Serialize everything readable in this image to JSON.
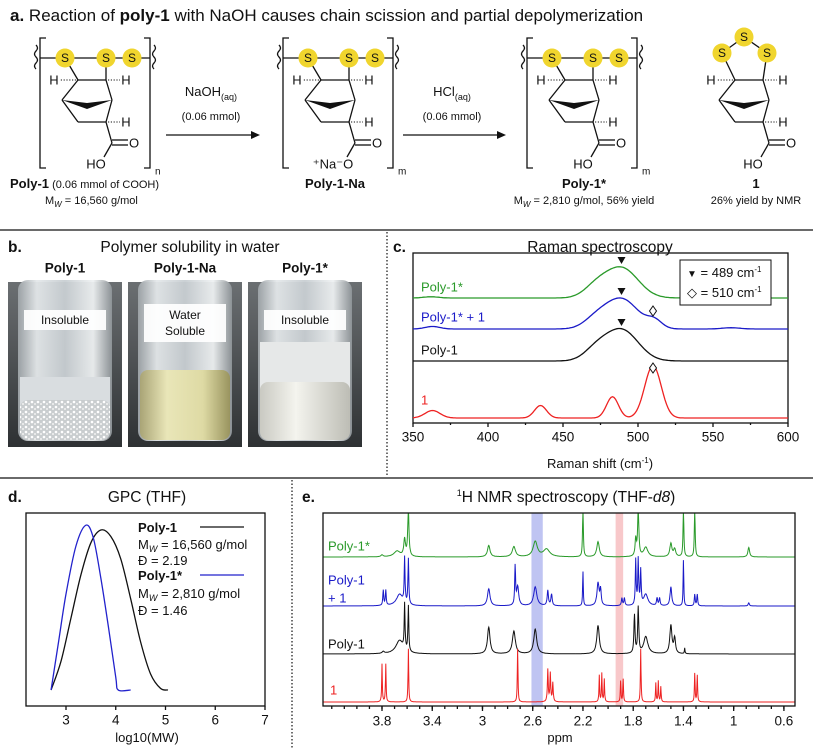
{
  "panel_a": {
    "letter": "a.",
    "title_pre": "Reaction of ",
    "title_bold": "poly-1",
    "title_post": " with NaOH causes chain scission and partial depolymerization",
    "atom_S": "S",
    "atom_H": "H",
    "atom_O": "O",
    "hydroxyl": "HO",
    "salt": "⁺Na⁻O",
    "sub_n": "n",
    "sub_m": "m",
    "step1": {
      "reagent": "NaOH",
      "reagent_sub": "(aq)",
      "amount": "(0.06 mmol)"
    },
    "step2": {
      "reagent": "HCl",
      "reagent_sub": "(aq)",
      "amount": "(0.06 mmol)"
    },
    "compounds": [
      {
        "name": "Poly-1",
        "note": " (0.06 mmol of COOH)",
        "mw_pre": "M",
        "mw_sub": "W",
        "mw_post": " = 16,560 g/mol"
      },
      {
        "name": "Poly-1-Na"
      },
      {
        "name": "Poly-1*",
        "mw_pre": "M",
        "mw_sub": "W",
        "mw_post": " = 2,810 g/mol, 56% yield"
      },
      {
        "name": "1",
        "note2": "26% yield by NMR"
      }
    ],
    "colors": {
      "sulfur": "#f0d52e"
    }
  },
  "panel_b": {
    "letter": "b.",
    "title": "Polymer solubility in water",
    "vials": [
      {
        "label": "Poly-1",
        "status": "Insoluble"
      },
      {
        "label": "Poly-1-Na",
        "status": "Water",
        "status2": "Soluble"
      },
      {
        "label": "Poly-1*",
        "status": "Insoluble"
      }
    ]
  },
  "panel_c": {
    "letter": "c.",
    "legend": [
      {
        "symbol": "▼",
        "text": " = 489 cm",
        "sup": "-1"
      },
      {
        "symbol": "◇",
        "text": " = 510 cm",
        "sup": "-1"
      }
    ],
    "xlabel_pre": "Raman shift (cm",
    "xlabel_sup": "-1",
    "xlabel_post": ")"
  },
  "panel_d": {
    "letter": "d.",
    "legend": [
      {
        "name": "Poly-1",
        "mw_pre": "M",
        "mw_sub": "W",
        "mw_post": " = 16,560 g/mol",
        "dispersity": "Đ = 2.19"
      },
      {
        "name": "Poly-1*",
        "mw_pre": "M",
        "mw_sub": "W",
        "mw_post": " = 2,810 g/mol",
        "dispersity": "Đ = 1.46"
      }
    ]
  },
  "panel_e": {
    "letter": "e.",
    "title_sup": "1",
    "title_pre": "H NMR spectroscopy (THF-",
    "title_ital": "d8",
    "title_post": ")",
    "label_plus": "+ 1",
    "highlight_colors": {
      "blue": "#aab0ee",
      "red": "#f5b5b8"
    }
  },
  "chart_data": [
    {
      "type": "line",
      "title": "Raman spectroscopy",
      "xlabel": "Raman shift (cm-1)",
      "xlim": [
        350,
        600
      ],
      "xticks": [
        350,
        400,
        450,
        500,
        550,
        600
      ],
      "markers": {
        "filled_triangle": 489,
        "open_diamond": 510
      },
      "series": [
        {
          "name": "Poly-1*",
          "color": "#2a9a2a",
          "peaks": [
            [
              489,
              24,
              11
            ],
            [
              472,
              8,
              8
            ],
            [
              362,
              1,
              5
            ]
          ]
        },
        {
          "name": "Poly-1* + 1",
          "color": "#1a1ac8",
          "peaks": [
            [
              489,
              24,
              11
            ],
            [
              472,
              7,
              8
            ],
            [
              511,
              6,
              5
            ],
            [
              363,
              2,
              5
            ],
            [
              562,
              1,
              6
            ]
          ]
        },
        {
          "name": "Poly-1",
          "color": "#111111",
          "peaks": [
            [
              489,
              25,
              11
            ],
            [
              472,
              8,
              8
            ]
          ]
        },
        {
          "name": "1",
          "color": "#ee2222",
          "peaks": [
            [
              363,
              6,
              5
            ],
            [
              435,
              10,
              4
            ],
            [
              483,
              17,
              4
            ],
            [
              510,
              42,
              5.5
            ]
          ]
        }
      ]
    },
    {
      "type": "line",
      "title": "GPC (THF)",
      "xlabel": "log10(MW)",
      "xlim": [
        2.2,
        7
      ],
      "xticks": [
        3,
        4,
        5,
        6,
        7
      ],
      "series": [
        {
          "name": "Poly-1",
          "color": "#111111",
          "points": [
            [
              2.7,
              0
            ],
            [
              2.9,
              0.18
            ],
            [
              3.1,
              0.45
            ],
            [
              3.3,
              0.72
            ],
            [
              3.5,
              0.92
            ],
            [
              3.7,
              1.0
            ],
            [
              3.9,
              0.96
            ],
            [
              4.1,
              0.82
            ],
            [
              4.3,
              0.57
            ],
            [
              4.5,
              0.3
            ],
            [
              4.7,
              0.1
            ],
            [
              4.9,
              0.01
            ],
            [
              5.05,
              0
            ]
          ]
        },
        {
          "name": "Poly-1*",
          "color": "#2222cc",
          "points": [
            [
              2.7,
              0
            ],
            [
              2.85,
              0.3
            ],
            [
              3.0,
              0.6
            ],
            [
              3.2,
              0.9
            ],
            [
              3.4,
              1.03
            ],
            [
              3.55,
              0.95
            ],
            [
              3.7,
              0.7
            ],
            [
              3.85,
              0.4
            ],
            [
              4.0,
              0.08
            ],
            [
              4.05,
              0
            ],
            [
              4.3,
              0
            ]
          ]
        }
      ]
    },
    {
      "type": "line",
      "title": "1H NMR spectroscopy (THF-d8)",
      "xlabel": "ppm",
      "xlim": [
        4.27,
        0.51
      ],
      "xticks": [
        3.8,
        3.4,
        3.0,
        2.6,
        2.2,
        1.8,
        1.4,
        1.0,
        0.6
      ],
      "highlights": [
        {
          "from": 2.61,
          "to": 2.52,
          "color": "blue"
        },
        {
          "from": 1.94,
          "to": 1.88,
          "color": "red"
        }
      ],
      "series": [
        {
          "name": "Poly-1*",
          "color": "#2a9a2a",
          "peaks": [
            [
              3.59,
              1.2,
              0.006
            ],
            [
              3.62,
              0.45,
              0.008
            ],
            [
              3.68,
              0.15,
              0.03
            ],
            [
              3.8,
              0.05,
              0.01
            ],
            [
              2.95,
              0.3,
              0.012
            ],
            [
              2.75,
              0.27,
              0.015
            ],
            [
              2.58,
              0.4,
              0.02
            ],
            [
              2.49,
              0.2,
              0.03
            ],
            [
              2.2,
              1.2,
              0.004
            ],
            [
              2.08,
              0.4,
              0.012
            ],
            [
              1.76,
              1.2,
              0.006
            ],
            [
              1.78,
              0.45,
              0.006
            ],
            [
              1.7,
              0.25,
              0.02
            ],
            [
              1.5,
              0.35,
              0.01
            ],
            [
              1.47,
              0.2,
              0.01
            ],
            [
              1.4,
              1.2,
              0.004
            ],
            [
              1.31,
              1.2,
              0.004
            ],
            [
              0.88,
              0.25,
              0.008
            ]
          ]
        },
        {
          "name": "Poly-1* + 1",
          "color": "#1a1ac8",
          "peaks": [
            [
              3.62,
              1.2,
              0.004
            ],
            [
              3.59,
              1.2,
              0.004
            ],
            [
              3.66,
              0.3,
              0.03
            ],
            [
              3.79,
              0.4,
              0.004
            ],
            [
              3.77,
              0.4,
              0.004
            ],
            [
              2.95,
              0.45,
              0.012
            ],
            [
              2.74,
              1.0,
              0.004
            ],
            [
              2.72,
              0.5,
              0.01
            ],
            [
              2.58,
              0.5,
              0.015
            ],
            [
              2.48,
              0.4,
              0.006
            ],
            [
              2.45,
              0.3,
              0.006
            ],
            [
              2.2,
              0.9,
              0.003
            ],
            [
              2.08,
              0.6,
              0.01
            ],
            [
              2.06,
              0.4,
              0.006
            ],
            [
              1.89,
              0.2,
              0.005
            ],
            [
              1.87,
              0.2,
              0.005
            ],
            [
              1.78,
              1.2,
              0.004
            ],
            [
              1.76,
              1.2,
              0.004
            ],
            [
              1.74,
              0.9,
              0.004
            ],
            [
              1.7,
              0.3,
              0.02
            ],
            [
              1.61,
              0.2,
              0.005
            ],
            [
              1.59,
              0.2,
              0.005
            ],
            [
              1.5,
              0.5,
              0.008
            ],
            [
              1.4,
              1.2,
              0.003
            ],
            [
              1.31,
              0.3,
              0.004
            ],
            [
              1.29,
              0.3,
              0.004
            ],
            [
              0.88,
              0.08,
              0.006
            ]
          ]
        },
        {
          "name": "Poly-1",
          "color": "#111111",
          "peaks": [
            [
              3.62,
              1.2,
              0.004
            ],
            [
              3.59,
              1.2,
              0.004
            ],
            [
              3.66,
              0.35,
              0.035
            ],
            [
              3.79,
              0.05,
              0.01
            ],
            [
              2.95,
              0.7,
              0.012
            ],
            [
              2.75,
              0.6,
              0.014
            ],
            [
              2.58,
              0.65,
              0.014
            ],
            [
              2.08,
              0.75,
              0.012
            ],
            [
              1.79,
              1.0,
              0.005
            ],
            [
              1.76,
              1.2,
              0.005
            ],
            [
              1.7,
              0.45,
              0.02
            ],
            [
              1.5,
              0.75,
              0.01
            ],
            [
              1.47,
              0.4,
              0.008
            ],
            [
              1.39,
              0.15,
              0.003
            ]
          ]
        },
        {
          "name": "1",
          "color": "#ee2222",
          "peaks": [
            [
              3.8,
              1.0,
              0.003
            ],
            [
              3.77,
              1.0,
              0.003
            ],
            [
              3.59,
              1.4,
              0.003
            ],
            [
              2.72,
              1.4,
              0.003
            ],
            [
              2.48,
              0.85,
              0.004
            ],
            [
              2.46,
              0.75,
              0.004
            ],
            [
              2.44,
              0.5,
              0.004
            ],
            [
              2.07,
              0.7,
              0.003
            ],
            [
              2.05,
              0.75,
              0.003
            ],
            [
              2.03,
              0.6,
              0.003
            ],
            [
              1.9,
              0.55,
              0.003
            ],
            [
              1.88,
              0.6,
              0.003
            ],
            [
              1.74,
              1.4,
              0.003
            ],
            [
              1.62,
              0.5,
              0.003
            ],
            [
              1.6,
              0.55,
              0.003
            ],
            [
              1.58,
              0.4,
              0.003
            ],
            [
              1.31,
              0.75,
              0.003
            ],
            [
              1.29,
              0.7,
              0.003
            ]
          ]
        }
      ]
    }
  ]
}
